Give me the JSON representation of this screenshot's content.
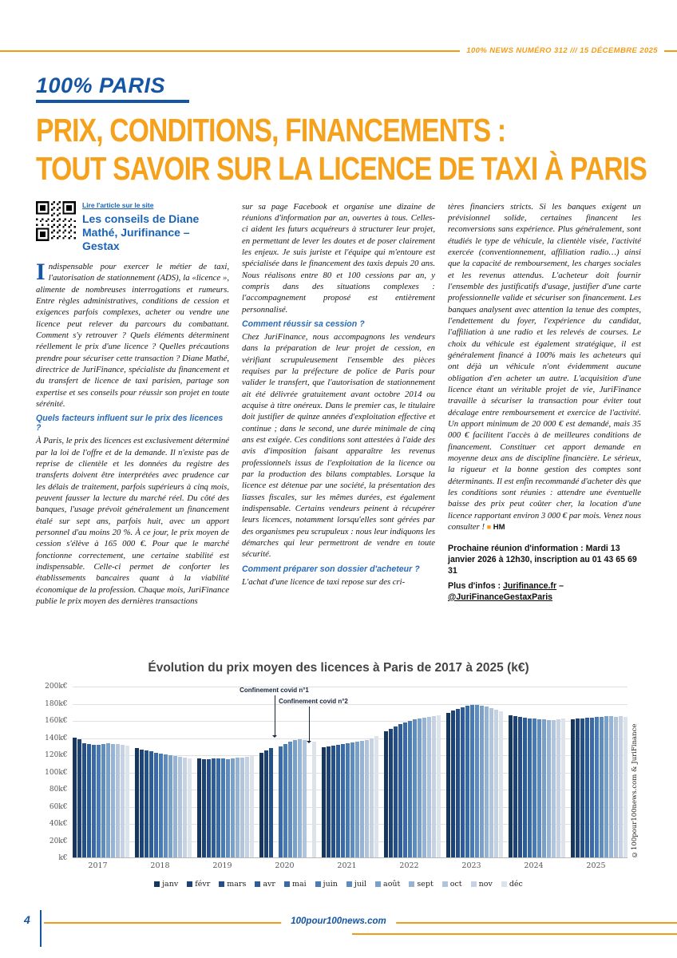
{
  "header": {
    "issue_line": "100% NEWS NUMÉRO 312 /// 15 DÉCEMBRE 2025"
  },
  "section": {
    "title": "100% PARIS"
  },
  "headline": {
    "line1": "PRIX, CONDITIONS, FINANCEMENTS :",
    "line2": "TOUT SAVOIR SUR LA LICENCE DE TAXI À PARIS"
  },
  "byline": {
    "qr_label": "Lire l'article sur le site",
    "advisor": "Les conseils de Diane Mathé, Jurifinance – Gestax"
  },
  "article": {
    "dropcap": "I",
    "col1": {
      "p1": "ndispensable pour exercer le métier de taxi, l'autorisation de stationnement (ADS), la «licence », alimente de nombreuses interrogations et rumeurs. Entre règles administratives, conditions de cession et exigences parfois complexes, acheter ou vendre une licence peut relever du parcours du combattant. Comment s'y retrouver ? Quels éléments déterminent réellement le prix d'une licence ? Quelles précautions prendre pour sécuriser cette transaction ? Diane Mathé, directrice de JuriFinance, spécialiste du financement et du transfert de licence de taxi parisien, partage son expertise et ses conseils pour réussir son projet en toute sérénité.",
      "h1": "Quels facteurs influent sur le prix des licences ?",
      "p2": "À Paris, le prix des licences est exclusivement déterminé par la loi de l'offre et de la demande. Il n'existe pas de reprise de clientèle et les données du registre des transferts doivent être interprétées avec prudence car les délais de traitement, parfois supérieurs à cinq mois, peuvent fausser la lecture du marché réel. Du côté des banques, l'usage prévoit généralement un financement étalé sur sept ans, parfois huit, avec un apport personnel d'au moins 20 %. À ce jour, le prix moyen de cession s'élève à 165 000 €. Pour que le marché fonctionne correctement, une certaine stabilité est indispensable. Celle-ci permet de conforter les établissements bancaires quant à la viabilité économique de la profession. Chaque mois, JuriFinance publie le prix moyen des dernières transactions"
    },
    "col2": {
      "p1": "sur sa page Facebook et organise une dizaine de réunions d'information par an, ouvertes à tous. Celles-ci aident les futurs acquéreurs à structurer leur projet, en permettant de lever les doutes et de poser clairement les enjeux. Je suis juriste et l'équipe qui m'entoure est spécialisée dans le financement des taxis depuis 20 ans. Nous réalisons entre 80 et 100 cessions par an, y compris dans des situations complexes : l'accompagnement proposé est entièrement personnalisé.",
      "h1": "Comment réussir sa cession ?",
      "p2": "Chez JuriFinance, nous accompagnons les vendeurs dans la préparation de leur projet de cession, en vérifiant scrupuleusement l'ensemble des pièces requises par la préfecture de police de Paris pour valider le transfert, que l'autorisation de stationnement ait été délivrée gratuitement avant octobre 2014 ou acquise à titre onéreux. Dans le premier cas, le titulaire doit justifier de quinze années d'exploitation effective et continue ; dans le second, une durée minimale de cinq ans est exigée. Ces conditions sont attestées à l'aide des avis d'imposition faisant apparaître les revenus professionnels issus de l'exploitation de la licence ou par la production des bilans comptables. Lorsque la licence est détenue par une société, la présentation des liasses fiscales, sur les mêmes durées, est également indispensable. Certains vendeurs peinent à récupérer leurs licences, notamment lorsqu'elles sont gérées par des organismes peu scrupuleux : nous leur indiquons les démarches qui leur permettront de vendre en toute sécurité.",
      "h2": "Comment préparer son dossier d'acheteur ?",
      "p3": "L'achat d'une licence de taxi repose sur des cri-"
    },
    "col3": {
      "p1": "tères financiers stricts. Si les banques exigent un prévisionnel solide, certaines financent les reconversions sans expérience. Plus généralement, sont étudiés le type de véhicule, la clientèle visée, l'activité exercée (conventionnement, affiliation radio…) ainsi que la capacité de remboursement, les charges sociales et les revenus attendus. L'acheteur doit fournir l'ensemble des justificatifs d'usage, justifier d'une carte professionnelle valide et sécuriser son financement. Les banques analysent avec attention la tenue des comptes, l'endettement du foyer, l'expérience du candidat, l'affiliation à une radio et les relevés de courses. Le choix du véhicule est également stratégique, il est généralement financé à 100% mais les acheteurs qui ont déjà un véhicule n'ont évidemment aucune obligation d'en acheter un autre. L'acquisition d'une licence étant un véritable projet de vie, JuriFinance travaille à sécuriser la transaction pour éviter tout décalage entre remboursement et exercice de l'activité. Un apport minimum de 20 000 € est demandé, mais 35 000 € facilitent l'accès à de meilleures conditions de financement. Constituer cet apport demande en moyenne deux ans de discipline financière. Le sérieux, la rigueur et la bonne gestion des comptes sont déterminants. Il est enfin recommandé d'acheter dès que les conditions sont réunies : attendre une éventuelle baisse des prix peut coûter cher, la location d'une licence rapportant environ 3 000 € par mois. Venez nous consulter !",
      "end_mark": "■",
      "sig": "HM",
      "info1": "Prochaine réunion d'information : Mardi 13 janvier 2026 à 12h30, inscription au 01 43 65 69 31",
      "info2_label": "Plus d'infos : ",
      "link1": "Jurifinance.fr",
      "sep": " – ",
      "link2": "@JuriFinanceGestaxParis"
    }
  },
  "chart_data": {
    "type": "bar",
    "title": "Évolution du prix moyen des licences à Paris de 2017 à 2025 (k€)",
    "unit": "k€",
    "ylim": [
      0,
      200
    ],
    "yticks": [
      0,
      20,
      40,
      60,
      80,
      100,
      120,
      140,
      160,
      180,
      200
    ],
    "ytick_labels": [
      "k€",
      "20k€",
      "40k€",
      "60k€",
      "80k€",
      "100k€",
      "120k€",
      "140k€",
      "160k€",
      "180k€",
      "200k€"
    ],
    "years": [
      "2017",
      "2018",
      "2019",
      "2020",
      "2021",
      "2022",
      "2023",
      "2024",
      "2025"
    ],
    "months": [
      "janv",
      "févr",
      "mars",
      "avr",
      "mai",
      "juin",
      "juil",
      "août",
      "sept",
      "oct",
      "nov",
      "déc"
    ],
    "month_colors": [
      "#17365d",
      "#1d4273",
      "#254f86",
      "#2e5c96",
      "#3a6aa5",
      "#4a7ab2",
      "#5f8cbd",
      "#7aa0c8",
      "#96b3d3",
      "#b0c4dc",
      "#c6d2e2",
      "#dde3ea"
    ],
    "values": [
      [
        140,
        138,
        133,
        132,
        131,
        131,
        132,
        133,
        132,
        132,
        131,
        130
      ],
      [
        127,
        126,
        125,
        124,
        122,
        121,
        120,
        119,
        118,
        117,
        116,
        115
      ],
      [
        115,
        114,
        114,
        115,
        115,
        115,
        114,
        115,
        116,
        116,
        117,
        119
      ],
      [
        122,
        125,
        127,
        null,
        129,
        132,
        135,
        137,
        138,
        137,
        null,
        135
      ],
      [
        128,
        129,
        130,
        131,
        132,
        133,
        134,
        135,
        136,
        137,
        139,
        141
      ],
      [
        147,
        150,
        153,
        155,
        157,
        159,
        161,
        162,
        163,
        164,
        165,
        166
      ],
      [
        168,
        171,
        173,
        175,
        177,
        178,
        178,
        177,
        176,
        174,
        172,
        170
      ],
      [
        166,
        165,
        164,
        163,
        162,
        162,
        161,
        161,
        160,
        160,
        161,
        162
      ],
      [
        161,
        162,
        162,
        163,
        163,
        164,
        164,
        165,
        165,
        164,
        165,
        164
      ]
    ],
    "annotations": [
      {
        "text": "Confinement covid n°1",
        "target": "2020 avr"
      },
      {
        "text": "Confinement covid n°2",
        "target": "2020 nov"
      }
    ],
    "grid": true,
    "legend_position": "bottom",
    "copyright": "©100pour100news.com & JuriFinance"
  },
  "footer": {
    "page_number": "4",
    "site": "100pour100news.com"
  },
  "colors": {
    "accent_orange": "#f29b16",
    "headline_orange": "#f5a11c",
    "brand_blue": "#1456a4",
    "subhead_blue": "#2b6cb8"
  }
}
